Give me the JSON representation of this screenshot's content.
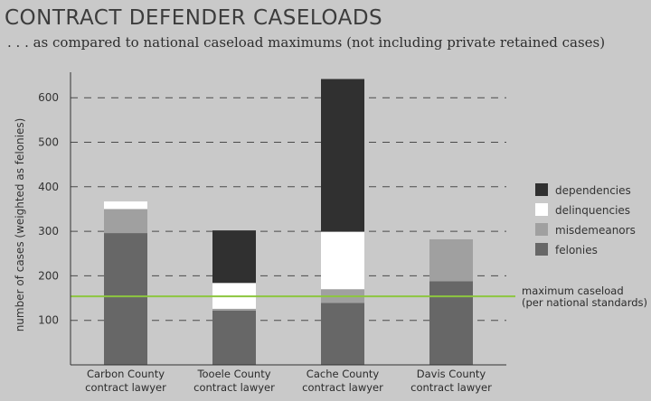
{
  "chart_data": {
    "type": "bar",
    "stacked": true,
    "title": "CONTRACT DEFENDER CASELOADS",
    "subtitle": ". . . as compared to national caseload maximums (not including private retained cases)",
    "ylabel": "number of cases (weighted as felonies)",
    "xlabel": "",
    "ylim": [
      0,
      650
    ],
    "yticks": [
      100,
      200,
      300,
      400,
      500,
      600
    ],
    "grid": true,
    "legend_position": "right",
    "categories": [
      [
        "Carbon County",
        "contract lawyer"
      ],
      [
        "Tooele County",
        "contract lawyer"
      ],
      [
        "Cache County",
        "contract lawyer"
      ],
      [
        "Davis County",
        "contract lawyer"
      ]
    ],
    "series": [
      {
        "name": "felonies",
        "color": "#676767",
        "values": [
          296,
          122,
          139,
          188
        ]
      },
      {
        "name": "misdemeanors",
        "color": "#a0a0a0",
        "values": [
          54,
          4,
          31,
          94
        ]
      },
      {
        "name": "delinquencies",
        "color": "#ffffff",
        "values": [
          17,
          58,
          129,
          0
        ]
      },
      {
        "name": "dependencies",
        "color": "#303030",
        "values": [
          0,
          118,
          343,
          0
        ]
      }
    ],
    "legend_order": [
      "dependencies",
      "delinquencies",
      "misdemeanors",
      "felonies"
    ],
    "reference_line": {
      "value": 154,
      "label": [
        "maximum caseload",
        "(per national standards)"
      ],
      "color": "#8dc63f"
    }
  }
}
